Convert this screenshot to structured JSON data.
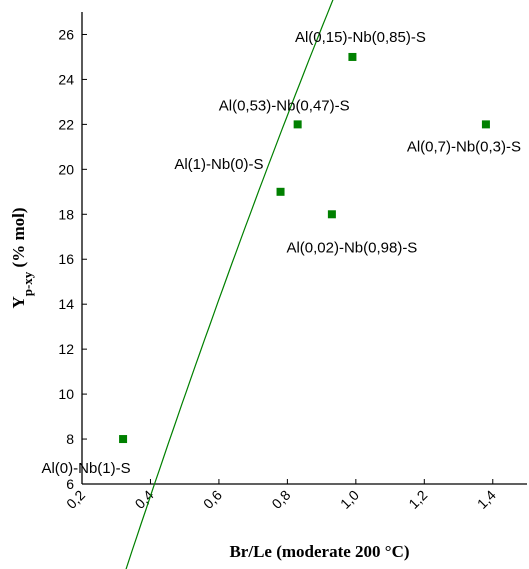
{
  "chart_data": {
    "type": "scatter",
    "xlabel": "Br/Le (moderate 200 °C)",
    "ylabel": "Y",
    "ylabel_sub": "p-xy",
    "ylabel_unit": " (% mol)",
    "xlim": [
      0.2,
      1.5
    ],
    "ylim": [
      6,
      27
    ],
    "x_ticks": [
      0.2,
      0.4,
      0.6,
      0.8,
      1.0,
      1.2,
      1.4
    ],
    "x_tick_labels": [
      "0,2",
      "0,4",
      "0,6",
      "0,8",
      "1,0",
      "1,2",
      "1,4"
    ],
    "y_ticks": [
      6,
      8,
      10,
      12,
      14,
      16,
      18,
      20,
      22,
      24,
      26
    ],
    "y_tick_labels": [
      "6",
      "8",
      "10",
      "12",
      "14",
      "16",
      "18",
      "20",
      "22",
      "24",
      "26"
    ],
    "grid": false,
    "marker_color": "#008000",
    "fit_color": "#008000",
    "points": [
      {
        "x": 0.32,
        "y": 8,
        "label": "Al(0)-Nb(1)-S"
      },
      {
        "x": 0.78,
        "y": 19,
        "label": "Al(1)-Nb(0)-S"
      },
      {
        "x": 0.83,
        "y": 22,
        "label": "Al(0,53)-Nb(0,47)-S"
      },
      {
        "x": 0.93,
        "y": 18,
        "label": "Al(0,02)-Nb(0,98)-S"
      },
      {
        "x": 0.99,
        "y": 25,
        "label": "Al(0,15)-Nb(0,85)-S"
      },
      {
        "x": 1.38,
        "y": 22,
        "label": "Al(0,7)-Nb(0,3)-S"
      }
    ],
    "fit": {
      "type": "quadratic",
      "coefficients": [
        -6.97,
        50.7,
        -13.7
      ],
      "x_range": [
        0.32,
        1.38
      ]
    }
  }
}
